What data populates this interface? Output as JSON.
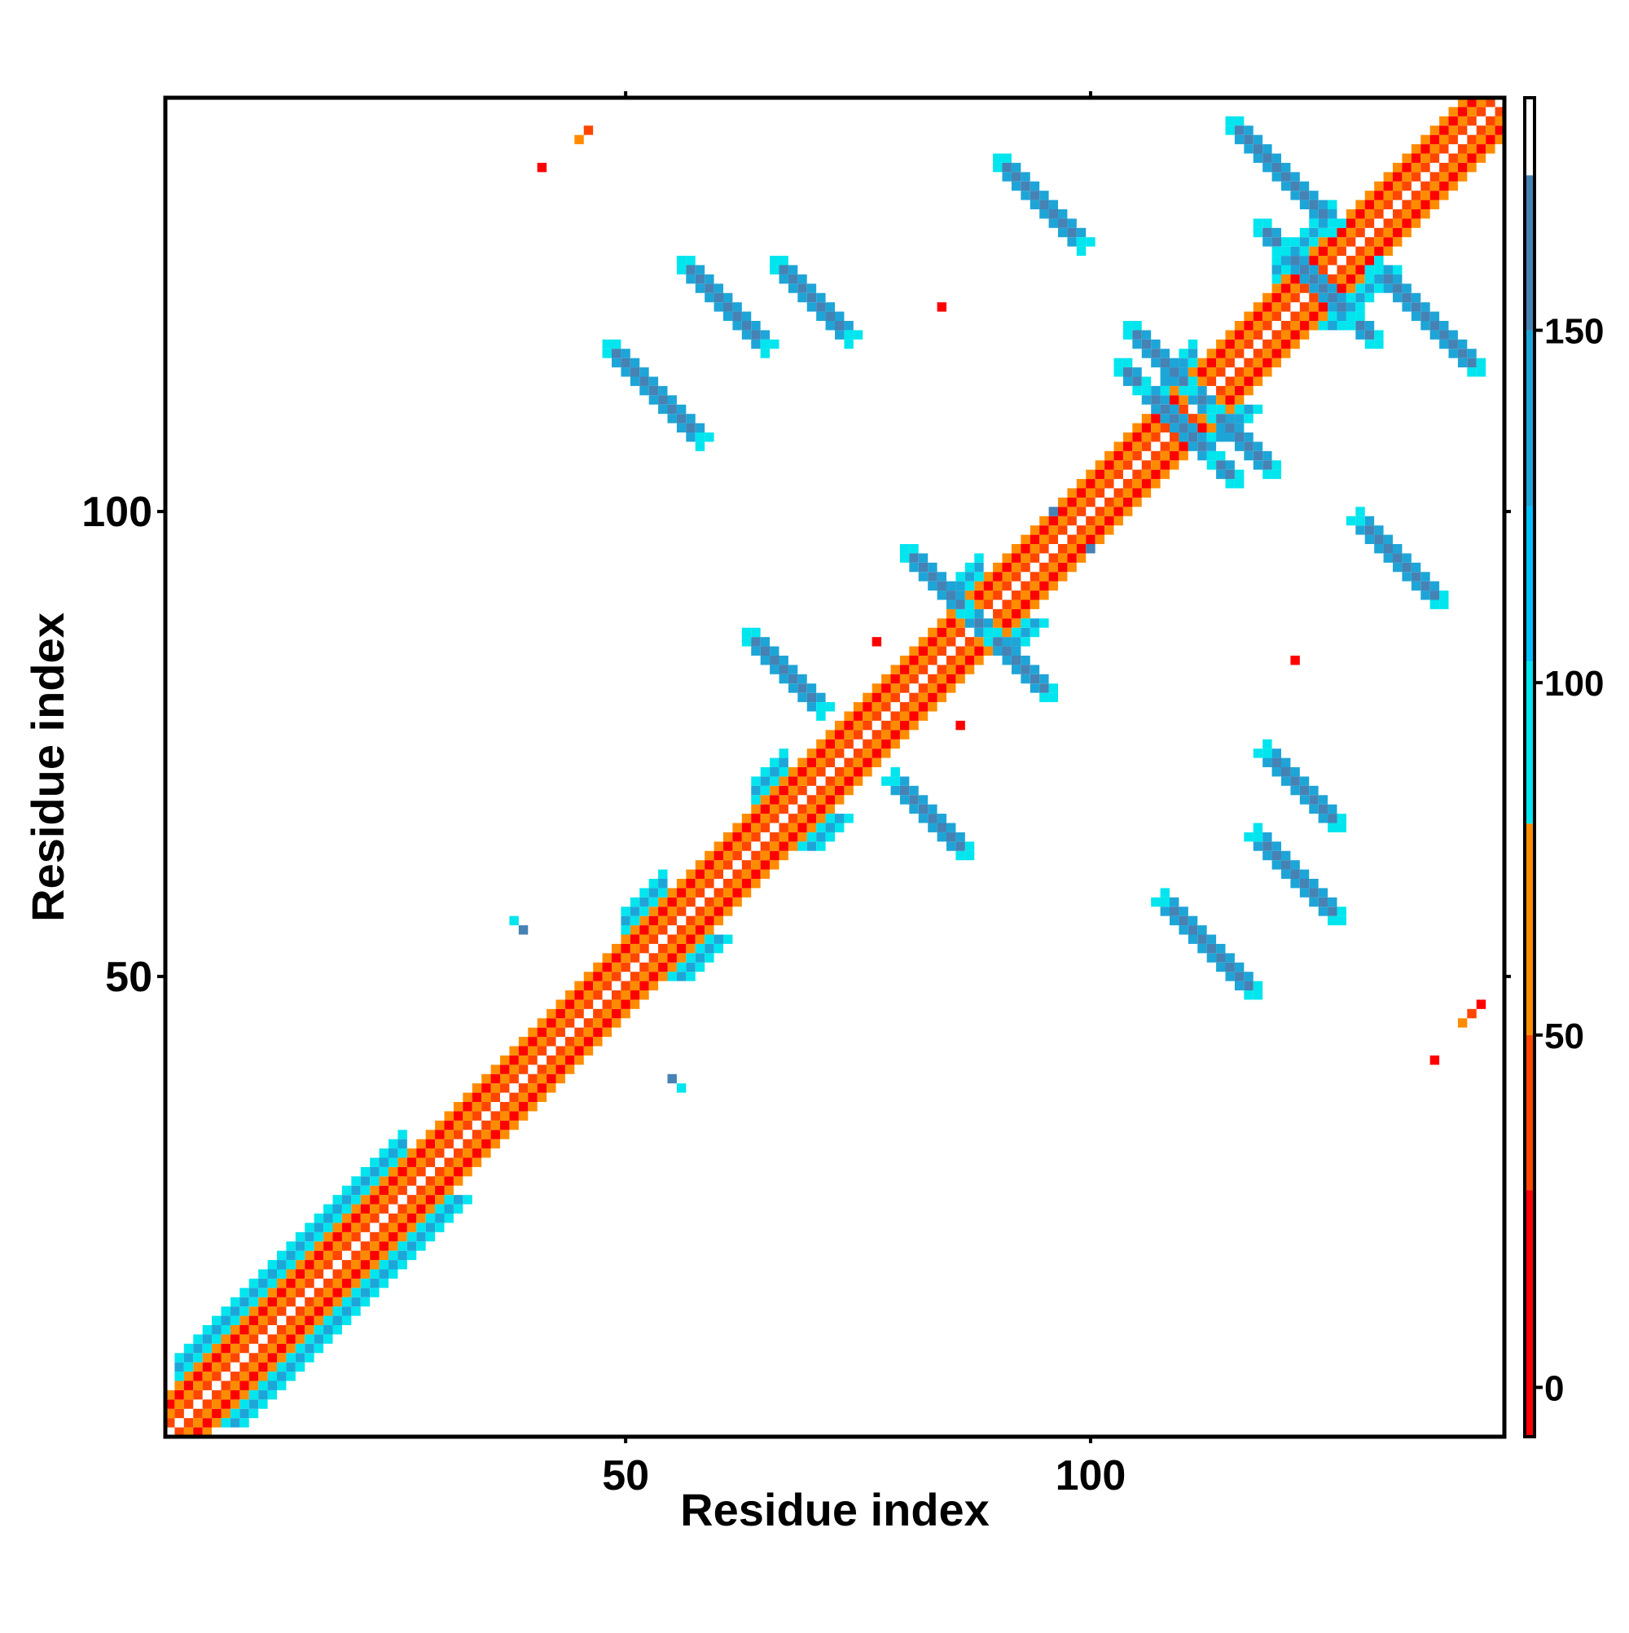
{
  "chart_data": {
    "type": "heatmap",
    "title": "",
    "xlabel": "Residue index",
    "ylabel": "Residue index",
    "x_range": [
      1,
      144
    ],
    "y_range": [
      1,
      144
    ],
    "x_ticks": [
      50,
      100
    ],
    "y_ticks": [
      50,
      100
    ],
    "colorbar": {
      "range": [
        -7,
        183
      ],
      "ticks": [
        0,
        50,
        100,
        150
      ],
      "bands": [
        {
          "from": -7,
          "to": 28,
          "color": "#ff0000"
        },
        {
          "from": 28,
          "to": 50,
          "color": "#ff4500"
        },
        {
          "from": 50,
          "to": 80,
          "color": "#ff8c00"
        },
        {
          "from": 80,
          "to": 103,
          "color": "#00e5ee"
        },
        {
          "from": 103,
          "to": 125,
          "color": "#00bfff"
        },
        {
          "from": 125,
          "to": 150,
          "color": "#1ea5d8"
        },
        {
          "from": 150,
          "to": 172,
          "color": "#4682b4"
        },
        {
          "from": 172,
          "to": 183,
          "color": "#ffffff"
        }
      ]
    },
    "structure": {
      "diagonal_value": 183,
      "off_diagonal_bands": [
        {
          "offset": 1,
          "value": 35
        },
        {
          "offset": 2,
          "value": 55
        },
        {
          "offset": 3,
          "value": 10
        },
        {
          "offset": 4,
          "value": 60
        }
      ],
      "helices": [
        [
          2,
          12
        ],
        [
          11,
          26
        ],
        [
          50,
          54
        ],
        [
          64,
          67
        ],
        [
          85,
          88
        ],
        [
          108,
          111
        ],
        [
          120,
          126
        ]
      ],
      "sheet_contacts": [
        {
          "i_start": 63,
          "j_start": 87,
          "length": 9,
          "orientation": "antiparallel",
          "value": 155
        },
        {
          "i_start": 80,
          "j_start": 96,
          "length": 10,
          "orientation": "antiparallel",
          "value": 155
        },
        {
          "i_start": 103,
          "j_start": 116,
          "length": 11,
          "orientation": "antiparallel",
          "value": 155
        },
        {
          "i_start": 118,
          "j_start": 131,
          "length": 11,
          "orientation": "antiparallel",
          "value": 155
        },
        {
          "i_start": 48,
          "j_start": 118,
          "length": 11,
          "orientation": "antiparallel",
          "value": 155
        },
        {
          "i_start": 66,
          "j_start": 127,
          "length": 9,
          "orientation": "antiparallel",
          "value": 155
        },
        {
          "i_start": 104,
          "j_start": 120,
          "length": 10,
          "orientation": "antiparallel",
          "value": 155
        },
        {
          "i_start": 90,
          "j_start": 138,
          "length": 10,
          "orientation": "antiparallel",
          "value": 155
        },
        {
          "i_start": 56,
          "j_start": 127,
          "length": 10,
          "orientation": "antiparallel",
          "value": 155
        },
        {
          "i_start": 115,
          "j_start": 142,
          "length": 12,
          "orientation": "antiparallel",
          "value": 155
        }
      ],
      "other_contacts": [
        {
          "i": 38,
          "j": 56,
          "value": 90
        },
        {
          "i": 39,
          "j": 55,
          "value": 150
        },
        {
          "i": 56,
          "j": 38,
          "value": 90
        },
        {
          "i": 55,
          "j": 39,
          "value": 150
        },
        {
          "i": 140,
          "j": 45,
          "value": 60
        },
        {
          "i": 141,
          "j": 46,
          "value": 40
        },
        {
          "i": 142,
          "j": 47,
          "value": 20
        },
        {
          "i": 137,
          "j": 41,
          "value": 10
        },
        {
          "i": 46,
          "j": 141,
          "value": 40
        },
        {
          "i": 45,
          "j": 140,
          "value": 60
        },
        {
          "i": 41,
          "j": 137,
          "value": 10
        },
        {
          "i": 86,
          "j": 77,
          "value": 10
        },
        {
          "i": 77,
          "j": 86,
          "value": 10
        },
        {
          "i": 122,
          "j": 84,
          "value": 10
        },
        {
          "i": 84,
          "j": 122,
          "value": 10
        },
        {
          "i": 96,
          "j": 100,
          "value": 155
        },
        {
          "i": 100,
          "j": 96,
          "value": 155
        }
      ]
    }
  }
}
